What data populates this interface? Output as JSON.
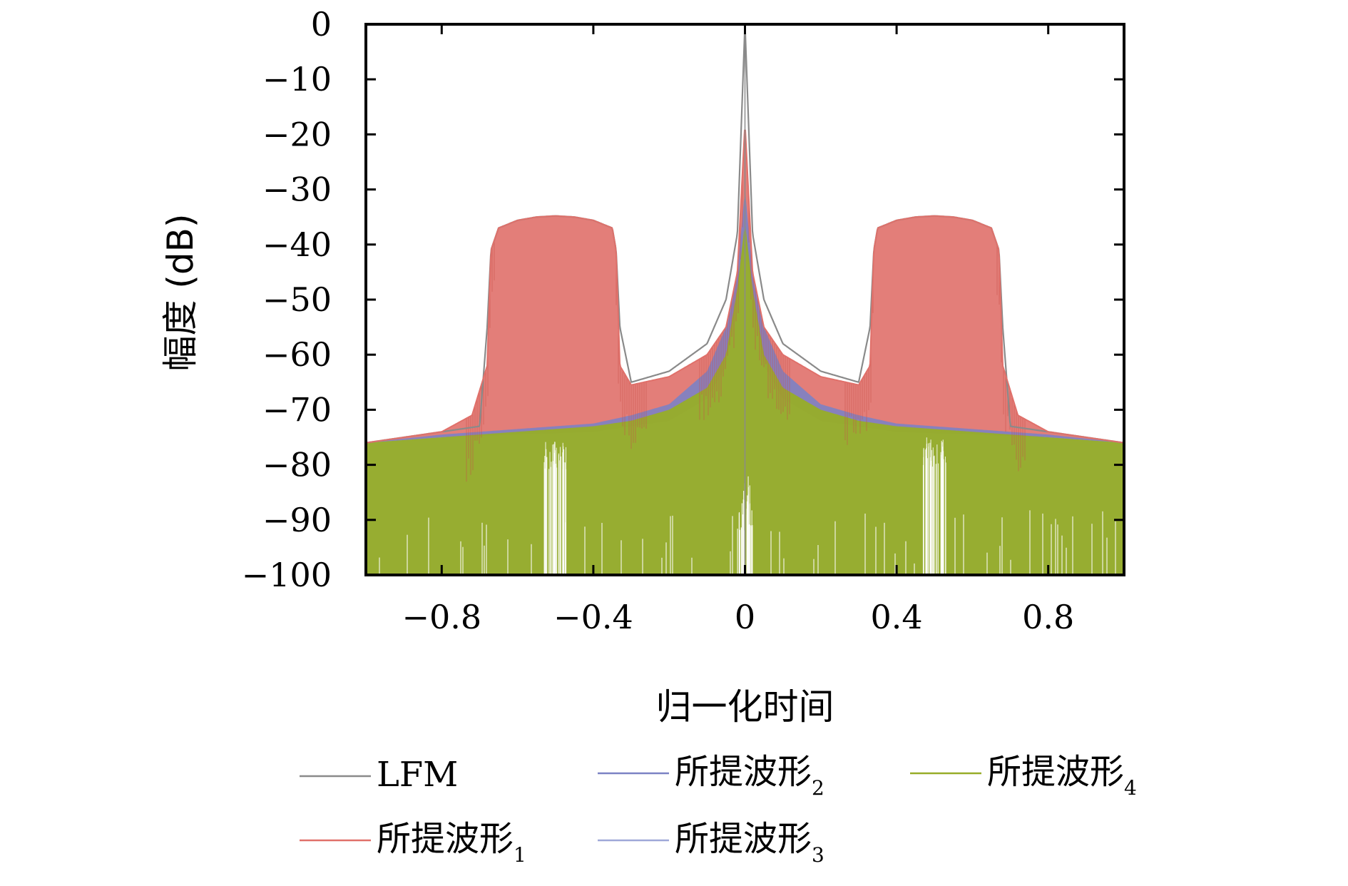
{
  "chart_data": {
    "type": "line",
    "title": "",
    "xlabel": "归一化时间",
    "ylabel": "幅度 (dB)",
    "xlim": [
      -1,
      1
    ],
    "ylim": [
      -100,
      0
    ],
    "x_ticks": [
      -0.8,
      -0.4,
      0,
      0.4,
      0.8
    ],
    "x_tick_labels": [
      "−0.8",
      "−0.4",
      "0",
      "0.4",
      "0.8"
    ],
    "y_ticks": [
      0,
      -10,
      -20,
      -30,
      -40,
      -50,
      -60,
      -70,
      -80,
      -90,
      -100
    ],
    "y_tick_labels": [
      "0",
      "−10",
      "−20",
      "−30",
      "−40",
      "−50",
      "−60",
      "−70",
      "−80",
      "−90",
      "−100"
    ],
    "grid": false,
    "legend_position": "bottom",
    "series": [
      {
        "name": "LFM",
        "color": "#8a8a8a",
        "style": "envelope",
        "x": [
          -1,
          -0.8,
          -0.7,
          -0.68,
          -0.67,
          -0.65,
          -0.6,
          -0.55,
          -0.5,
          -0.45,
          -0.4,
          -0.35,
          -0.34,
          -0.33,
          -0.3,
          -0.2,
          -0.1,
          -0.05,
          -0.02,
          0,
          0.02,
          0.05,
          0.1,
          0.2,
          0.3,
          0.33,
          0.34,
          0.35,
          0.4,
          0.45,
          0.5,
          0.55,
          0.6,
          0.65,
          0.67,
          0.68,
          0.7,
          0.8,
          1
        ],
        "y": [
          -76,
          -74,
          -73,
          -55,
          -41,
          -37,
          -35.6,
          -35,
          -34.8,
          -35,
          -35.6,
          -37,
          -41,
          -55,
          -65,
          -63,
          -58,
          -50,
          -38,
          0,
          -38,
          -50,
          -58,
          -63,
          -65,
          -55,
          -41,
          -37,
          -35.6,
          -35,
          -34.8,
          -35,
          -35.6,
          -37,
          -41,
          -55,
          -73,
          -74,
          -76
        ]
      },
      {
        "name": "所提波形",
        "subscript": "1",
        "color": "#e0706a",
        "style": "band",
        "x": [
          -1,
          -0.8,
          -0.72,
          -0.68,
          -0.67,
          -0.65,
          -0.6,
          -0.55,
          -0.5,
          -0.45,
          -0.4,
          -0.35,
          -0.34,
          -0.33,
          -0.3,
          -0.2,
          -0.1,
          -0.05,
          -0.02,
          0,
          0.02,
          0.05,
          0.1,
          0.2,
          0.3,
          0.33,
          0.34,
          0.35,
          0.4,
          0.45,
          0.5,
          0.55,
          0.6,
          0.65,
          0.67,
          0.68,
          0.72,
          0.8,
          1
        ],
        "y": [
          -76,
          -74,
          -71,
          -62,
          -41,
          -37,
          -35.6,
          -35,
          -34.8,
          -35,
          -35.6,
          -37,
          -41,
          -62,
          -65.5,
          -64,
          -60,
          -55,
          -45,
          -18,
          -45,
          -55,
          -60,
          -64,
          -65.5,
          -62,
          -41,
          -37,
          -35.6,
          -35,
          -34.8,
          -35,
          -35.6,
          -37,
          -41,
          -62,
          -71,
          -74,
          -76
        ]
      },
      {
        "name": "所提波形",
        "subscript": "2",
        "color": "#7c82c4",
        "style": "band",
        "x": [
          -1,
          -0.8,
          -0.7,
          -0.6,
          -0.5,
          -0.4,
          -0.3,
          -0.2,
          -0.1,
          -0.05,
          -0.02,
          0,
          0.02,
          0.05,
          0.1,
          0.2,
          0.3,
          0.4,
          0.5,
          0.6,
          0.7,
          0.8,
          1
        ],
        "y": [
          -76,
          -74.5,
          -74,
          -73.5,
          -73,
          -72.5,
          -71,
          -69,
          -63,
          -55,
          -45,
          -30,
          -45,
          -55,
          -63,
          -69,
          -71,
          -72.5,
          -73,
          -73.5,
          -74,
          -74.5,
          -76
        ]
      },
      {
        "name": "所提波形",
        "subscript": "3",
        "color": "#9fa8d8",
        "style": "band",
        "x": [
          -1,
          -0.8,
          -0.6,
          -0.4,
          -0.2,
          -0.1,
          -0.05,
          0,
          0.05,
          0.1,
          0.2,
          0.4,
          0.6,
          0.8,
          1
        ],
        "y": [
          -76,
          -75,
          -74.5,
          -74,
          -72,
          -68,
          -62,
          -40,
          -62,
          -68,
          -72,
          -74,
          -74.5,
          -75,
          -76
        ]
      },
      {
        "name": "所提波形",
        "subscript": "4",
        "color": "#97ad28",
        "style": "band",
        "x": [
          -1,
          -0.8,
          -0.7,
          -0.6,
          -0.5,
          -0.4,
          -0.3,
          -0.2,
          -0.1,
          -0.05,
          -0.02,
          0,
          0.02,
          0.05,
          0.1,
          0.2,
          0.3,
          0.4,
          0.5,
          0.6,
          0.7,
          0.8,
          1
        ],
        "y": [
          -76,
          -75,
          -74.5,
          -74,
          -73.5,
          -73,
          -72,
          -70,
          -66,
          -60,
          -48,
          -36,
          -48,
          -60,
          -66,
          -70,
          -72,
          -73,
          -73.5,
          -74,
          -74.5,
          -75,
          -76
        ]
      }
    ]
  }
}
